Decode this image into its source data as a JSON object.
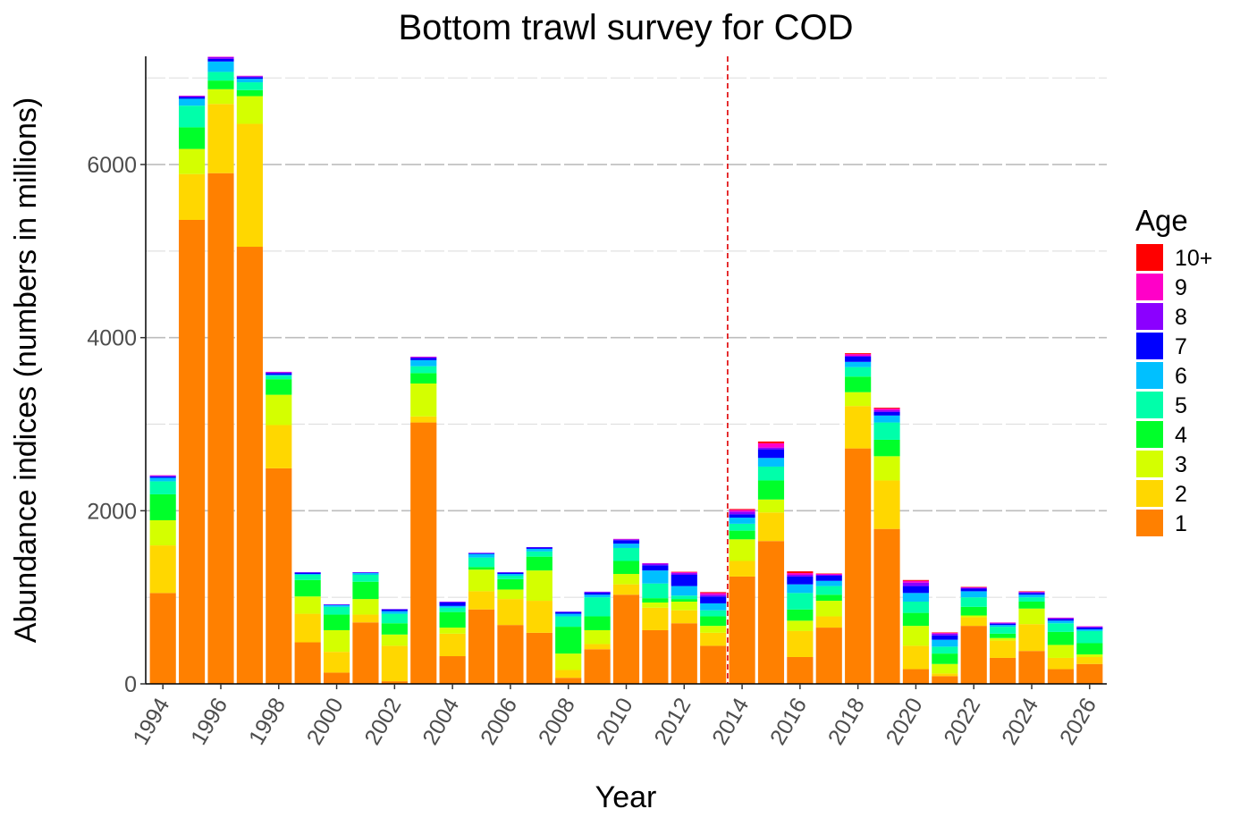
{
  "chart_data": {
    "type": "bar",
    "stacked": true,
    "title": "Bottom trawl survey for COD",
    "xlabel": "Year",
    "ylabel": "Abundance indices (numbers in millions)",
    "ylim": [
      0,
      7250
    ],
    "yticks": [
      0,
      2000,
      4000,
      6000
    ],
    "x_tick_labels": [
      "1994",
      "1996",
      "1998",
      "2000",
      "2002",
      "2004",
      "2006",
      "2008",
      "2010",
      "2012",
      "2014",
      "2016",
      "2018",
      "2020",
      "2022",
      "2024",
      "2026"
    ],
    "vline_between": [
      "2013",
      "2014"
    ],
    "vline_color": "#e31a1c",
    "grid": true,
    "legend_title": "Age",
    "legend_position": "right",
    "legend_order": [
      "10+",
      "9",
      "8",
      "7",
      "6",
      "5",
      "4",
      "3",
      "2",
      "1"
    ],
    "colors": {
      "1": "#ff8000",
      "2": "#ffd700",
      "3": "#d4ff00",
      "4": "#00ff2a",
      "5": "#00ffaa",
      "6": "#00c0ff",
      "7": "#0000ff",
      "8": "#8b00ff",
      "9": "#ff00c8",
      "10+": "#ff0000"
    },
    "categories": [
      "1994",
      "1995",
      "1996",
      "1997",
      "1998",
      "1999",
      "2000",
      "2001",
      "2002",
      "2003",
      "2004",
      "2005",
      "2006",
      "2007",
      "2008",
      "2009",
      "2010",
      "2011",
      "2012",
      "2013",
      "2014",
      "2015",
      "2016",
      "2017",
      "2018",
      "2019",
      "2020",
      "2021",
      "2022",
      "2023",
      "2024",
      "2025",
      "2026"
    ],
    "series": [
      {
        "name": "1",
        "values": [
          1050,
          5360,
          5900,
          5050,
          2490,
          480,
          130,
          710,
          30,
          3020,
          320,
          860,
          680,
          590,
          70,
          400,
          1030,
          620,
          700,
          440,
          1240,
          1650,
          310,
          650,
          2720,
          1790,
          170,
          90,
          670,
          300,
          380,
          170,
          230
        ]
      },
      {
        "name": "2",
        "values": [
          550,
          530,
          800,
          1420,
          500,
          330,
          240,
          90,
          410,
          70,
          260,
          210,
          300,
          370,
          90,
          60,
          120,
          260,
          150,
          150,
          180,
          330,
          300,
          130,
          490,
          560,
          270,
          30,
          100,
          200,
          310,
          130,
          80
        ]
      },
      {
        "name": "3",
        "values": [
          290,
          290,
          170,
          320,
          350,
          200,
          250,
          180,
          130,
          380,
          70,
          250,
          110,
          350,
          190,
          160,
          120,
          60,
          100,
          80,
          250,
          150,
          120,
          180,
          160,
          280,
          230,
          110,
          20,
          30,
          180,
          150,
          30
        ]
      },
      {
        "name": "4",
        "values": [
          300,
          250,
          100,
          70,
          180,
          190,
          180,
          200,
          130,
          120,
          180,
          30,
          120,
          160,
          310,
          160,
          150,
          50,
          30,
          110,
          100,
          220,
          130,
          70,
          180,
          190,
          150,
          120,
          100,
          50,
          80,
          150,
          130
        ]
      },
      {
        "name": "5",
        "values": [
          150,
          250,
          100,
          90,
          40,
          60,
          90,
          80,
          110,
          80,
          50,
          110,
          40,
          60,
          120,
          220,
          150,
          170,
          40,
          70,
          80,
          160,
          190,
          100,
          110,
          200,
          130,
          80,
          110,
          80,
          50,
          100,
          140
        ]
      },
      {
        "name": "6",
        "values": [
          40,
          80,
          120,
          40,
          10,
          10,
          20,
          20,
          30,
          70,
          20,
          40,
          20,
          30,
          30,
          30,
          50,
          150,
          110,
          80,
          70,
          100,
          100,
          60,
          60,
          80,
          100,
          80,
          70,
          20,
          30,
          30,
          20
        ]
      },
      {
        "name": "7",
        "values": [
          15,
          20,
          30,
          20,
          20,
          15,
          5,
          5,
          20,
          25,
          40,
          10,
          15,
          15,
          20,
          25,
          40,
          60,
          130,
          80,
          40,
          100,
          90,
          60,
          60,
          40,
          80,
          50,
          30,
          15,
          20,
          20,
          20
        ]
      },
      {
        "name": "8",
        "values": [
          10,
          10,
          20,
          10,
          10,
          5,
          5,
          5,
          5,
          10,
          10,
          5,
          5,
          5,
          5,
          10,
          10,
          20,
          20,
          20,
          30,
          20,
          20,
          10,
          10,
          20,
          40,
          20,
          10,
          10,
          10,
          10,
          10
        ]
      },
      {
        "name": "9",
        "values": [
          5,
          5,
          5,
          5,
          5,
          0,
          0,
          0,
          0,
          5,
          0,
          0,
          0,
          0,
          0,
          0,
          5,
          5,
          10,
          20,
          20,
          50,
          20,
          10,
          20,
          20,
          20,
          10,
          5,
          5,
          5,
          5,
          5
        ]
      },
      {
        "name": "10+",
        "values": [
          0,
          0,
          0,
          0,
          0,
          0,
          0,
          0,
          0,
          0,
          0,
          0,
          0,
          0,
          0,
          0,
          0,
          0,
          5,
          10,
          10,
          20,
          20,
          5,
          10,
          10,
          10,
          5,
          5,
          0,
          5,
          0,
          0
        ]
      }
    ]
  }
}
